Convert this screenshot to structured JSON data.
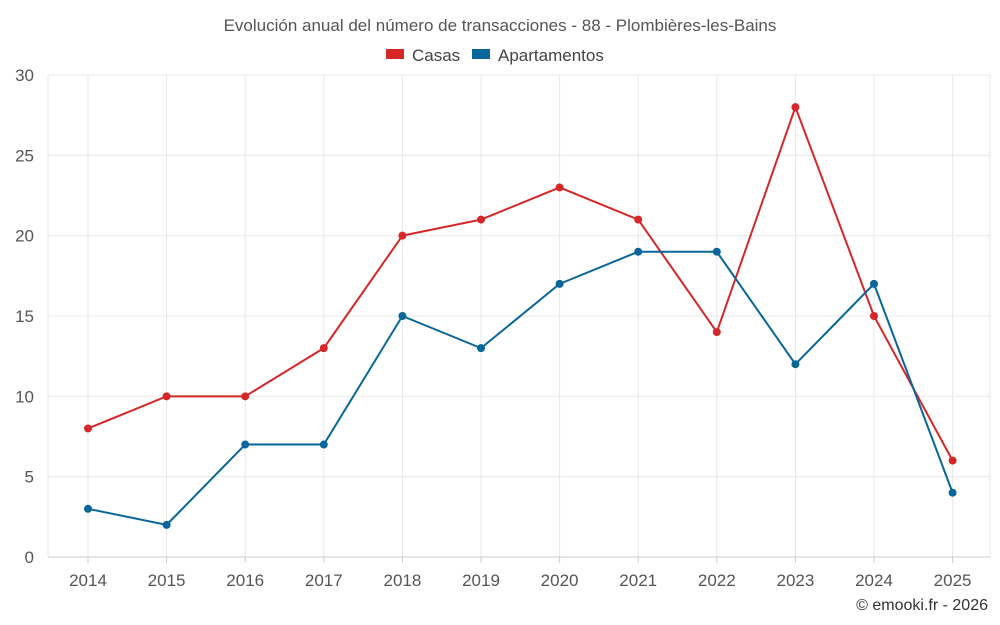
{
  "chart_data": {
    "type": "line",
    "title": "Evolución anual del número de transacciones - 88 - Plombières-les-Bains",
    "categories": [
      "2014",
      "2015",
      "2016",
      "2017",
      "2018",
      "2019",
      "2020",
      "2021",
      "2022",
      "2023",
      "2024",
      "2025"
    ],
    "series": [
      {
        "name": "Casas",
        "color": "#d62728",
        "values": [
          8,
          10,
          10,
          13,
          20,
          21,
          23,
          21,
          14,
          28,
          15,
          6
        ]
      },
      {
        "name": "Apartamentos",
        "color": "#08669a",
        "values": [
          3,
          2,
          7,
          7,
          15,
          13,
          17,
          19,
          19,
          12,
          17,
          4
        ]
      }
    ],
    "yticks": [
      "0",
      "5",
      "10",
      "15",
      "20",
      "25",
      "30"
    ],
    "ylim": [
      0,
      30
    ],
    "grid": true,
    "legend_position": "top-center",
    "credit": "© emooki.fr - 2026"
  }
}
